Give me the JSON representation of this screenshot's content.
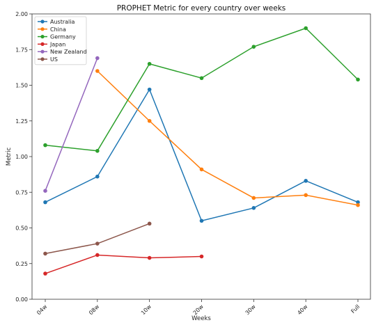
{
  "chart_data": {
    "type": "line",
    "title": "PROPHET Metric for every country over weeks",
    "xlabel": "Weeks",
    "ylabel": "Metric",
    "categories": [
      "04w",
      "08w",
      "10w",
      "20w",
      "30w",
      "40w",
      "Full"
    ],
    "ylim": [
      0,
      2.0
    ],
    "yticks": [
      "0.00",
      "0.25",
      "0.50",
      "0.75",
      "1.00",
      "1.25",
      "1.50",
      "1.75",
      "2.00"
    ],
    "grid": false,
    "legend_position": "top-left",
    "series": [
      {
        "name": "Australia",
        "color": "#1f77b4",
        "values": [
          0.68,
          0.86,
          1.47,
          0.55,
          0.64,
          0.83,
          0.68
        ]
      },
      {
        "name": "China",
        "color": "#ff7f0e",
        "values": [
          null,
          1.6,
          1.25,
          0.91,
          0.71,
          0.73,
          0.66
        ]
      },
      {
        "name": "Germany",
        "color": "#2ca02c",
        "values": [
          1.08,
          1.04,
          1.65,
          1.55,
          1.77,
          1.9,
          1.54
        ]
      },
      {
        "name": "Japan",
        "color": "#d62728",
        "values": [
          0.18,
          0.31,
          0.29,
          0.3,
          null,
          null,
          null
        ]
      },
      {
        "name": "New Zealand",
        "color": "#9467bd",
        "values": [
          0.76,
          1.69,
          null,
          null,
          null,
          null,
          null
        ]
      },
      {
        "name": "US",
        "color": "#8c564b",
        "values": [
          0.32,
          0.39,
          0.53,
          null,
          null,
          null,
          null
        ]
      }
    ]
  }
}
